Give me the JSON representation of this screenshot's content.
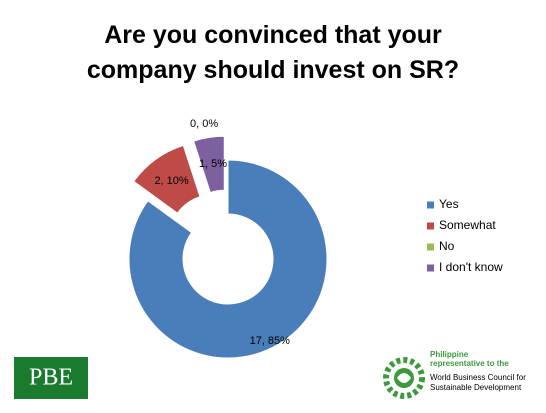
{
  "chart_data": {
    "type": "doughnut",
    "title": "Are you convinced that your company should invest on SR?",
    "categories": [
      "Yes",
      "Somewhat",
      "No",
      "I don't know"
    ],
    "values": [
      17,
      2,
      0,
      1
    ],
    "value_labels": [
      "17, 85%",
      "2, 10%",
      "0, 0%",
      "1, 5%"
    ],
    "colors": [
      "#4a7ebb",
      "#be4b48",
      "#98b954",
      "#7d60a0"
    ],
    "exploded": [
      false,
      true,
      false,
      true
    ],
    "legend": "right"
  },
  "logos": {
    "left": "PBE",
    "right": {
      "tagline": [
        "Philippine",
        "representative to the"
      ],
      "name": [
        "World Business Council for",
        "Sustainable Development"
      ]
    }
  }
}
